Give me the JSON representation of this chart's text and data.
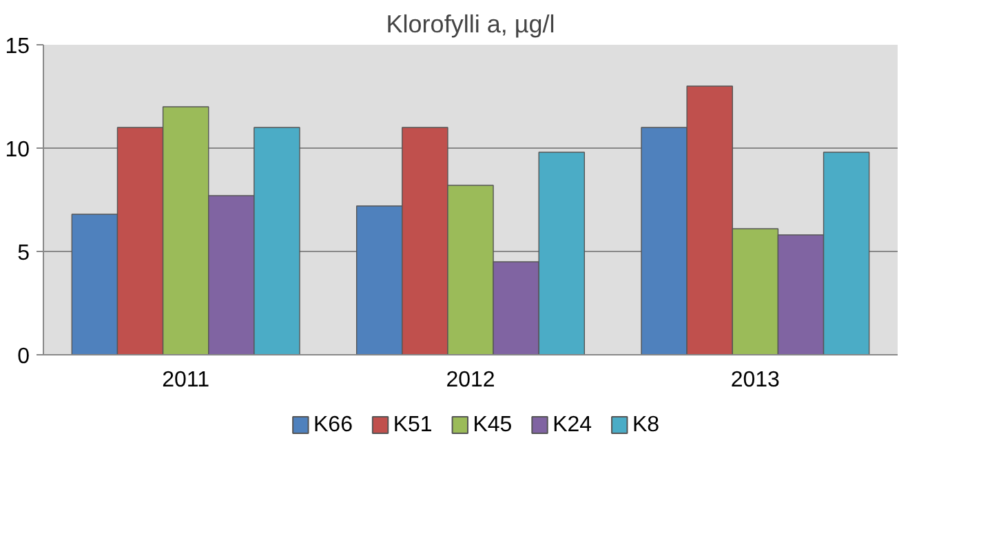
{
  "chart_data": {
    "type": "bar",
    "title": "Klorofylli a, µg/l",
    "categories": [
      "2011",
      "2012",
      "2013"
    ],
    "series": [
      {
        "name": "K66",
        "color": "#4f81bd",
        "values": [
          6.8,
          7.2,
          11
        ]
      },
      {
        "name": "K51",
        "color": "#c0504d",
        "values": [
          11,
          11,
          13
        ]
      },
      {
        "name": "K45",
        "color": "#9bbb59",
        "values": [
          12,
          8.2,
          6.1
        ]
      },
      {
        "name": "K24",
        "color": "#8064a2",
        "values": [
          7.7,
          4.5,
          5.8
        ]
      },
      {
        "name": "K8",
        "color": "#4bacc6",
        "values": [
          11,
          9.8,
          9.8
        ]
      }
    ],
    "ylim": [
      0,
      15
    ],
    "yticks": [
      0,
      5,
      10,
      15
    ],
    "grid": "y",
    "legend": "bottom"
  }
}
